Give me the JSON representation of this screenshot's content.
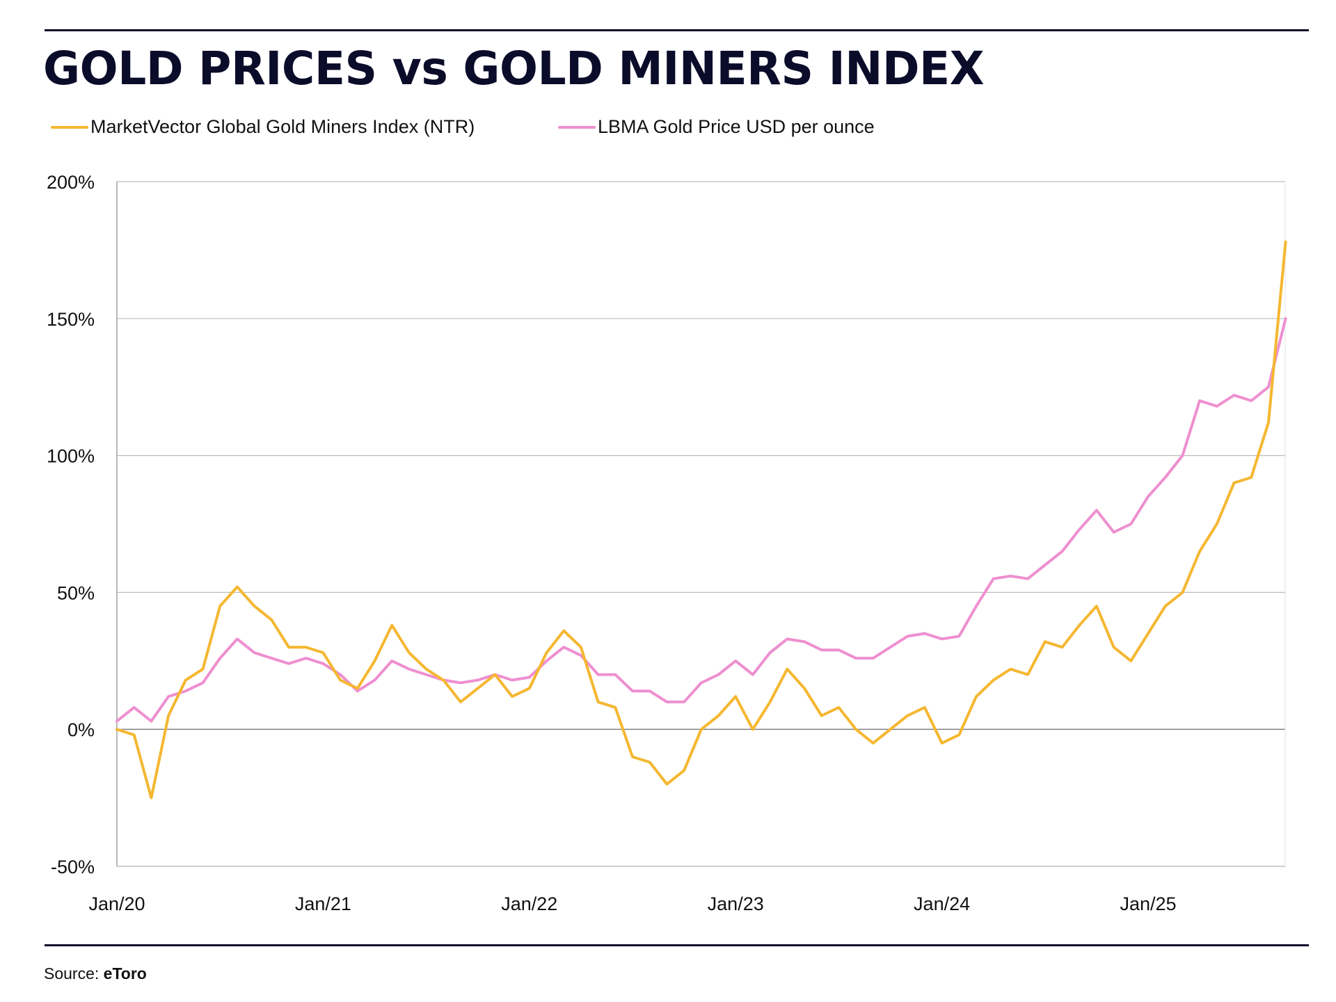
{
  "header": {
    "title": "GOLD PRICES vs GOLD MINERS INDEX"
  },
  "footer": {
    "source_label": "Source:",
    "source_name": "eToro"
  },
  "chart_data": {
    "type": "line",
    "title": "GOLD PRICES vs GOLD MINERS INDEX",
    "xlabel": "",
    "ylabel": "",
    "x_unit": "month index from Jan 2020 (0 = Jan/20)",
    "x_range": [
      0,
      68
    ],
    "ylim": [
      -50,
      200
    ],
    "y_ticks": [
      -50,
      0,
      50,
      100,
      150,
      200
    ],
    "y_tick_labels": [
      "-50%",
      "0%",
      "50%",
      "100%",
      "150%",
      "200%"
    ],
    "x_ticks": [
      0,
      12,
      24,
      36,
      48,
      60
    ],
    "x_tick_labels": [
      "Jan/20",
      "Jan/21",
      "Jan/22",
      "Jan/23",
      "Jan/24",
      "Jan/25"
    ],
    "grid": true,
    "legend_position": "top-left",
    "x": [
      0,
      1,
      2,
      3,
      4,
      5,
      6,
      7,
      8,
      9,
      10,
      11,
      12,
      13,
      14,
      15,
      16,
      17,
      18,
      19,
      20,
      21,
      22,
      23,
      24,
      25,
      26,
      27,
      28,
      29,
      30,
      31,
      32,
      33,
      34,
      35,
      36,
      37,
      38,
      39,
      40,
      41,
      42,
      43,
      44,
      45,
      46,
      47,
      48,
      49,
      50,
      51,
      52,
      53,
      54,
      55,
      56,
      57,
      58,
      59,
      60,
      61,
      62,
      63,
      64,
      65,
      66,
      67,
      68
    ],
    "series": [
      {
        "name": "MarketVector Global Gold Miners Index (NTR)",
        "color": "#F5B731",
        "values": [
          0,
          -2,
          -25,
          5,
          18,
          22,
          45,
          52,
          45,
          40,
          30,
          30,
          28,
          18,
          15,
          25,
          38,
          28,
          22,
          18,
          10,
          15,
          20,
          12,
          15,
          28,
          36,
          30,
          10,
          8,
          -10,
          -12,
          -20,
          -15,
          0,
          5,
          12,
          0,
          10,
          22,
          15,
          5,
          8,
          0,
          -5,
          0,
          5,
          8,
          -5,
          -2,
          12,
          18,
          22,
          20,
          32,
          30,
          38,
          45,
          30,
          25,
          35,
          45,
          50,
          65,
          75,
          90,
          92,
          112,
          178
        ]
      },
      {
        "name": "LBMA Gold Price USD per ounce",
        "color": "#EE8FD0",
        "values": [
          3,
          8,
          3,
          12,
          14,
          17,
          26,
          33,
          28,
          26,
          24,
          26,
          24,
          20,
          14,
          18,
          25,
          22,
          20,
          18,
          17,
          18,
          20,
          18,
          19,
          25,
          30,
          27,
          20,
          20,
          14,
          14,
          10,
          10,
          17,
          20,
          25,
          20,
          28,
          33,
          32,
          29,
          29,
          26,
          26,
          30,
          34,
          35,
          33,
          34,
          45,
          55,
          56,
          55,
          60,
          65,
          73,
          80,
          72,
          75,
          85,
          92,
          100,
          120,
          118,
          122,
          120,
          125,
          150
        ]
      }
    ]
  }
}
